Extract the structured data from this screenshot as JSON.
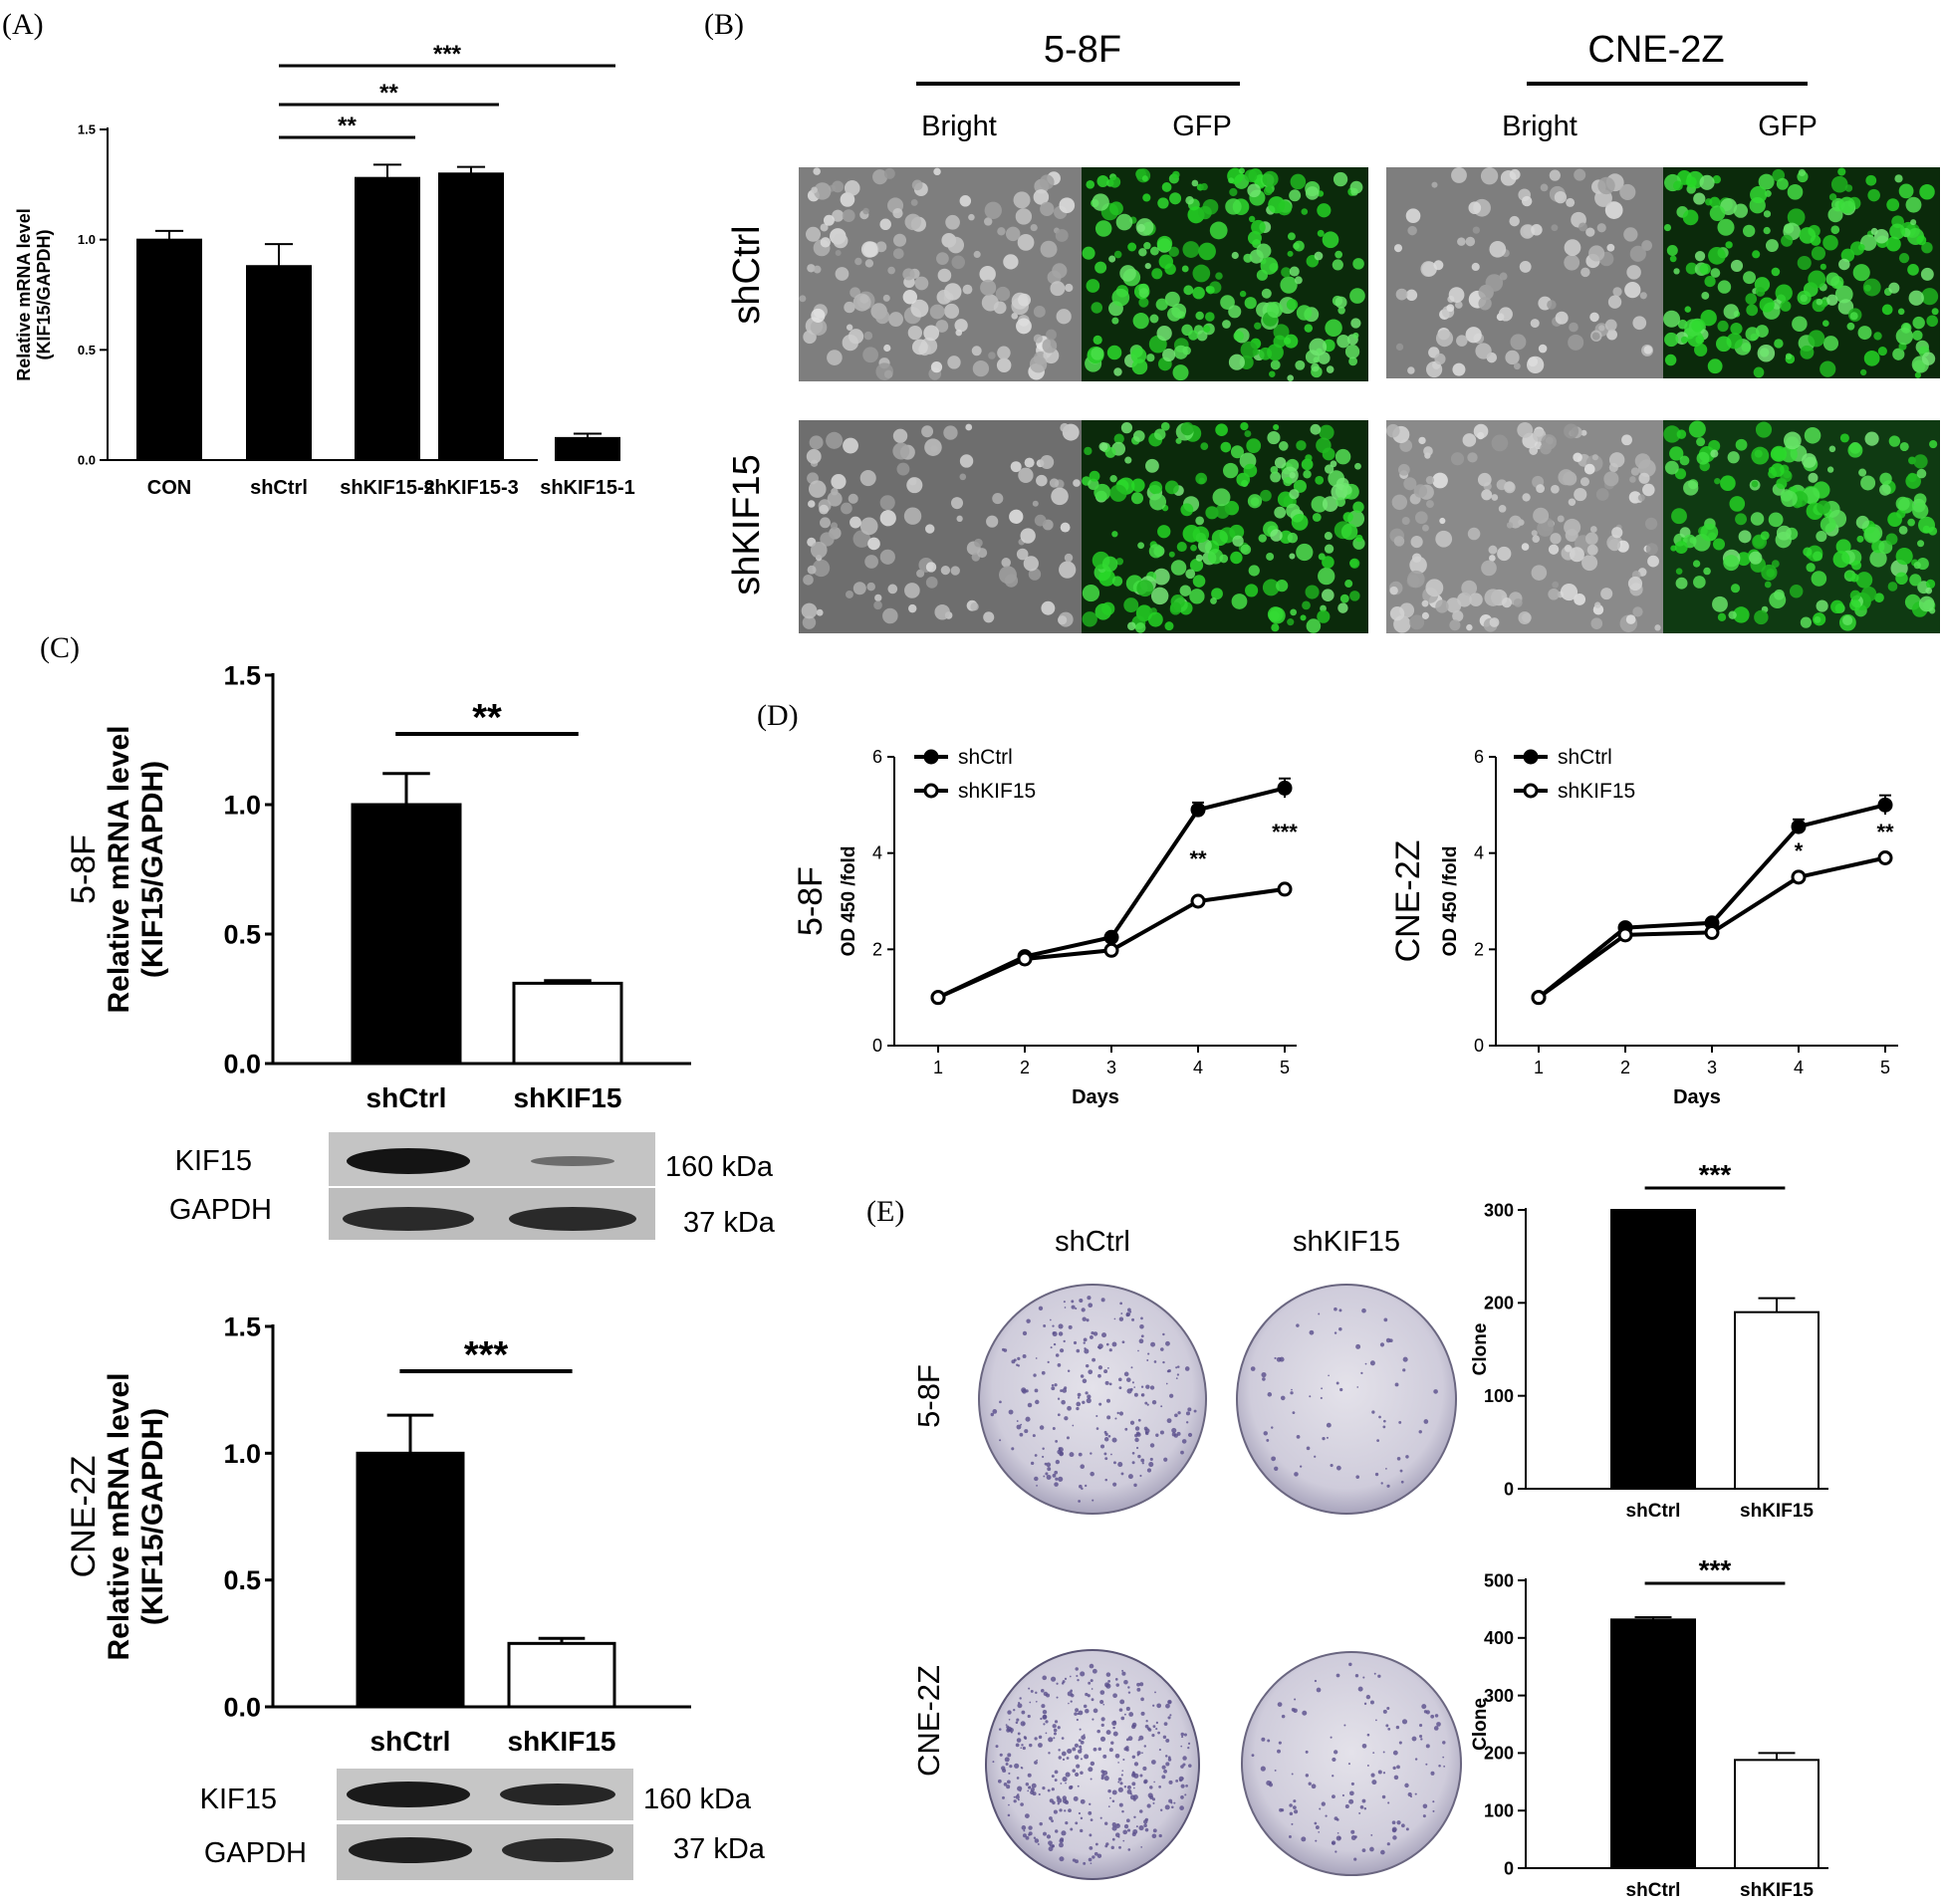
{
  "panels": {
    "A": {
      "letter": "(A)"
    },
    "B": {
      "letter": "(B)",
      "lines": [
        "5-8F",
        "CNE-2Z"
      ],
      "views": [
        "Bright",
        "GFP"
      ],
      "rows": [
        "shCtrl",
        "shKIF15"
      ]
    },
    "C": {
      "letter": "(C)"
    },
    "D": {
      "letter": "(D)"
    },
    "E": {
      "letter": "(E)",
      "cols": [
        "shCtrl",
        "shKIF15"
      ],
      "rows": [
        "5-8F",
        "CNE-2Z"
      ]
    }
  },
  "western": [
    {
      "rows": [
        "KIF15",
        "GAPDH"
      ],
      "sizes": [
        "160 kDa",
        "37 kDa"
      ]
    },
    {
      "rows": [
        "KIF15",
        "GAPDH"
      ],
      "sizes": [
        "160 kDa",
        "37 kDa"
      ]
    }
  ],
  "colors": {
    "bar_fill": "#000000",
    "open_bar_fill": "#ffffff",
    "gfp": "#31b83a",
    "gfp_bg": "#0b2a0b",
    "bright_bg": "#7e7e7e",
    "stain": "#5a4f8c"
  },
  "chart_data": [
    {
      "id": "A",
      "type": "bar",
      "categories": [
        "CON",
        "shCtrl",
        "shKIF15-2",
        "shKIF15-3",
        "shKIF15-1"
      ],
      "values": [
        1.0,
        0.88,
        1.28,
        1.3,
        0.1
      ],
      "errors": [
        0.04,
        0.1,
        0.06,
        0.03,
        0.02
      ],
      "ylabel_lines": [
        "Relative mRNA level",
        "(KIF15/GAPDH)"
      ],
      "ylim": [
        0,
        1.5
      ],
      "yticks": [
        "0.0",
        "0.5",
        "1.0",
        "1.5"
      ],
      "brackets": [
        {
          "from": 1,
          "to": 2,
          "label": "**"
        },
        {
          "from": 1,
          "to": 3,
          "label": "**"
        },
        {
          "from": 1,
          "to": 4,
          "label": "***"
        }
      ]
    },
    {
      "id": "C1",
      "type": "bar",
      "categories": [
        "shCtrl",
        "shKIF15"
      ],
      "values": [
        1.0,
        0.31
      ],
      "errors": [
        0.12,
        0.01
      ],
      "ylabel_lines": [
        "5-8F",
        "Relative mRNA level",
        "(KIF15/GAPDH)"
      ],
      "ylim": [
        0,
        1.5
      ],
      "yticks": [
        "0.0",
        "0.5",
        "1.0",
        "1.5"
      ],
      "brackets": [
        {
          "from": 0,
          "to": 1,
          "label": "**"
        }
      ]
    },
    {
      "id": "C2",
      "type": "bar",
      "categories": [
        "shCtrl",
        "shKIF15"
      ],
      "values": [
        1.0,
        0.25
      ],
      "errors": [
        0.15,
        0.02
      ],
      "ylabel_lines": [
        "CNE-2Z",
        "Relative mRNA level",
        "(KIF15/GAPDH)"
      ],
      "ylim": [
        0,
        1.5
      ],
      "yticks": [
        "0.0",
        "0.5",
        "1.0",
        "1.5"
      ],
      "brackets": [
        {
          "from": 0,
          "to": 1,
          "label": "***"
        }
      ]
    },
    {
      "id": "D1",
      "type": "line",
      "x": [
        1,
        2,
        3,
        4,
        5
      ],
      "xlabel": "Days",
      "ylabel_lines": [
        "5-8F",
        "OD 450 /fold"
      ],
      "ylim": [
        0,
        6
      ],
      "yticks": [
        "0",
        "2",
        "4",
        "6"
      ],
      "series": [
        {
          "name": "shCtrl",
          "values": [
            1.0,
            1.85,
            2.25,
            4.9,
            5.35
          ],
          "errors": [
            0.03,
            0.05,
            0.08,
            0.15,
            0.2
          ]
        },
        {
          "name": "shKIF15",
          "values": [
            1.0,
            1.8,
            1.98,
            3.0,
            3.25
          ],
          "errors": [
            0.03,
            0.05,
            0.05,
            0.05,
            0.05
          ]
        }
      ],
      "annotations": [
        {
          "x": 4,
          "label": "**"
        },
        {
          "x": 5,
          "label": "***"
        }
      ],
      "legend": "top-left"
    },
    {
      "id": "D2",
      "type": "line",
      "x": [
        1,
        2,
        3,
        4,
        5
      ],
      "xlabel": "Days",
      "ylabel_lines": [
        "CNE-2Z",
        "OD 450 /fold"
      ],
      "ylim": [
        0,
        6
      ],
      "yticks": [
        "0",
        "2",
        "4",
        "6"
      ],
      "series": [
        {
          "name": "shCtrl",
          "values": [
            1.0,
            2.45,
            2.55,
            4.55,
            5.0
          ],
          "errors": [
            0.03,
            0.05,
            0.05,
            0.15,
            0.2
          ]
        },
        {
          "name": "shKIF15",
          "values": [
            1.0,
            2.3,
            2.35,
            3.5,
            3.9
          ],
          "errors": [
            0.03,
            0.05,
            0.05,
            0.06,
            0.06
          ]
        }
      ],
      "annotations": [
        {
          "x": 4,
          "label": "*"
        },
        {
          "x": 5,
          "label": "**"
        }
      ],
      "legend": "top-left"
    },
    {
      "id": "E1",
      "type": "bar",
      "categories": [
        "shCtrl",
        "shKIF15"
      ],
      "values": [
        300,
        190
      ],
      "errors": [
        0,
        15
      ],
      "ylabel_lines": [
        "Clone"
      ],
      "ylim": [
        0,
        300
      ],
      "yticks": [
        "0",
        "100",
        "200",
        "300"
      ],
      "brackets": [
        {
          "from": 0,
          "to": 1,
          "label": "***"
        }
      ]
    },
    {
      "id": "E2",
      "type": "bar",
      "categories": [
        "shCtrl",
        "shKIF15"
      ],
      "values": [
        432,
        188
      ],
      "errors": [
        4,
        12
      ],
      "ylabel_lines": [
        "Clone"
      ],
      "ylim": [
        0,
        500
      ],
      "yticks": [
        "0",
        "100",
        "200",
        "300",
        "400",
        "500"
      ],
      "brackets": [
        {
          "from": 0,
          "to": 1,
          "label": "***"
        }
      ]
    }
  ]
}
